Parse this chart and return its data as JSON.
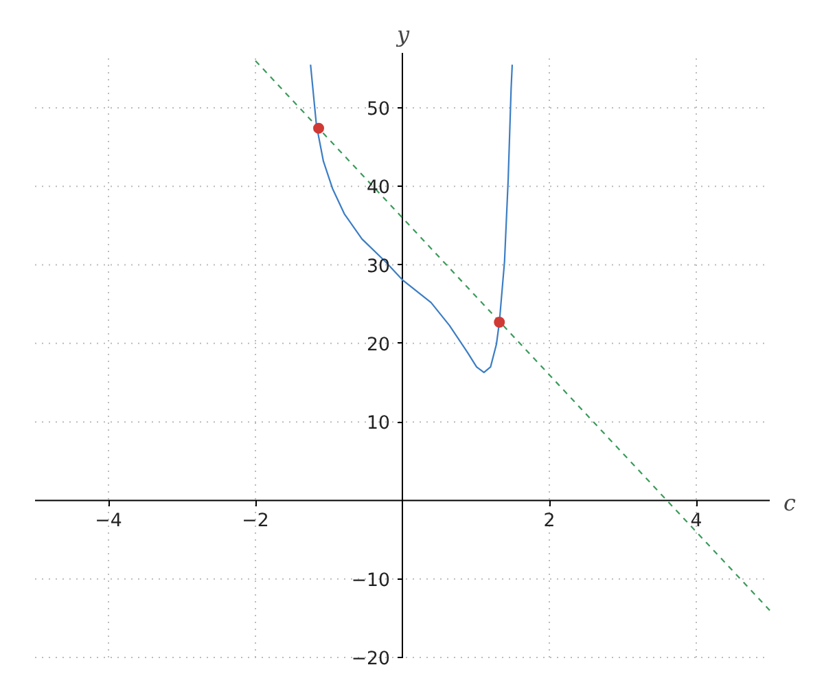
{
  "chart_data": {
    "type": "line",
    "xlabel": "c",
    "ylabel": "y",
    "xlim": [
      -5,
      5
    ],
    "ylim": [
      -20,
      57
    ],
    "xticks": [
      -4,
      -2,
      2,
      4
    ],
    "yticks": [
      -20,
      -10,
      10,
      20,
      30,
      40,
      50
    ],
    "grid": true,
    "series": [
      {
        "color": "#3b7dc4",
        "line_style": "solid",
        "marker": "none",
        "x": [
          -1.25,
          -1.17,
          -1.075,
          -0.95,
          -0.79,
          -0.55,
          -0.23,
          0,
          0.39,
          0.64,
          0.89,
          1.01,
          1.11,
          1.2,
          1.28,
          1.32,
          1.39,
          1.44,
          1.48,
          1.495
        ],
        "values": [
          55.5,
          47.8,
          43.2,
          39.7,
          36.5,
          33.3,
          30.4,
          28.1,
          25.2,
          22.3,
          18.8,
          17,
          16.3,
          17,
          19.9,
          22.7,
          30.4,
          40.9,
          52.5,
          55.5
        ]
      },
      {
        "color": "#3a9a5a",
        "line_style": "dashed",
        "marker": "none",
        "x": [
          -2,
          5
        ],
        "values": [
          56,
          -14
        ]
      },
      {
        "type": "scatter",
        "color": "#d03a35",
        "marker": "circle",
        "x": [
          -1.14,
          1.32
        ],
        "values": [
          47.4,
          22.7
        ]
      }
    ]
  }
}
